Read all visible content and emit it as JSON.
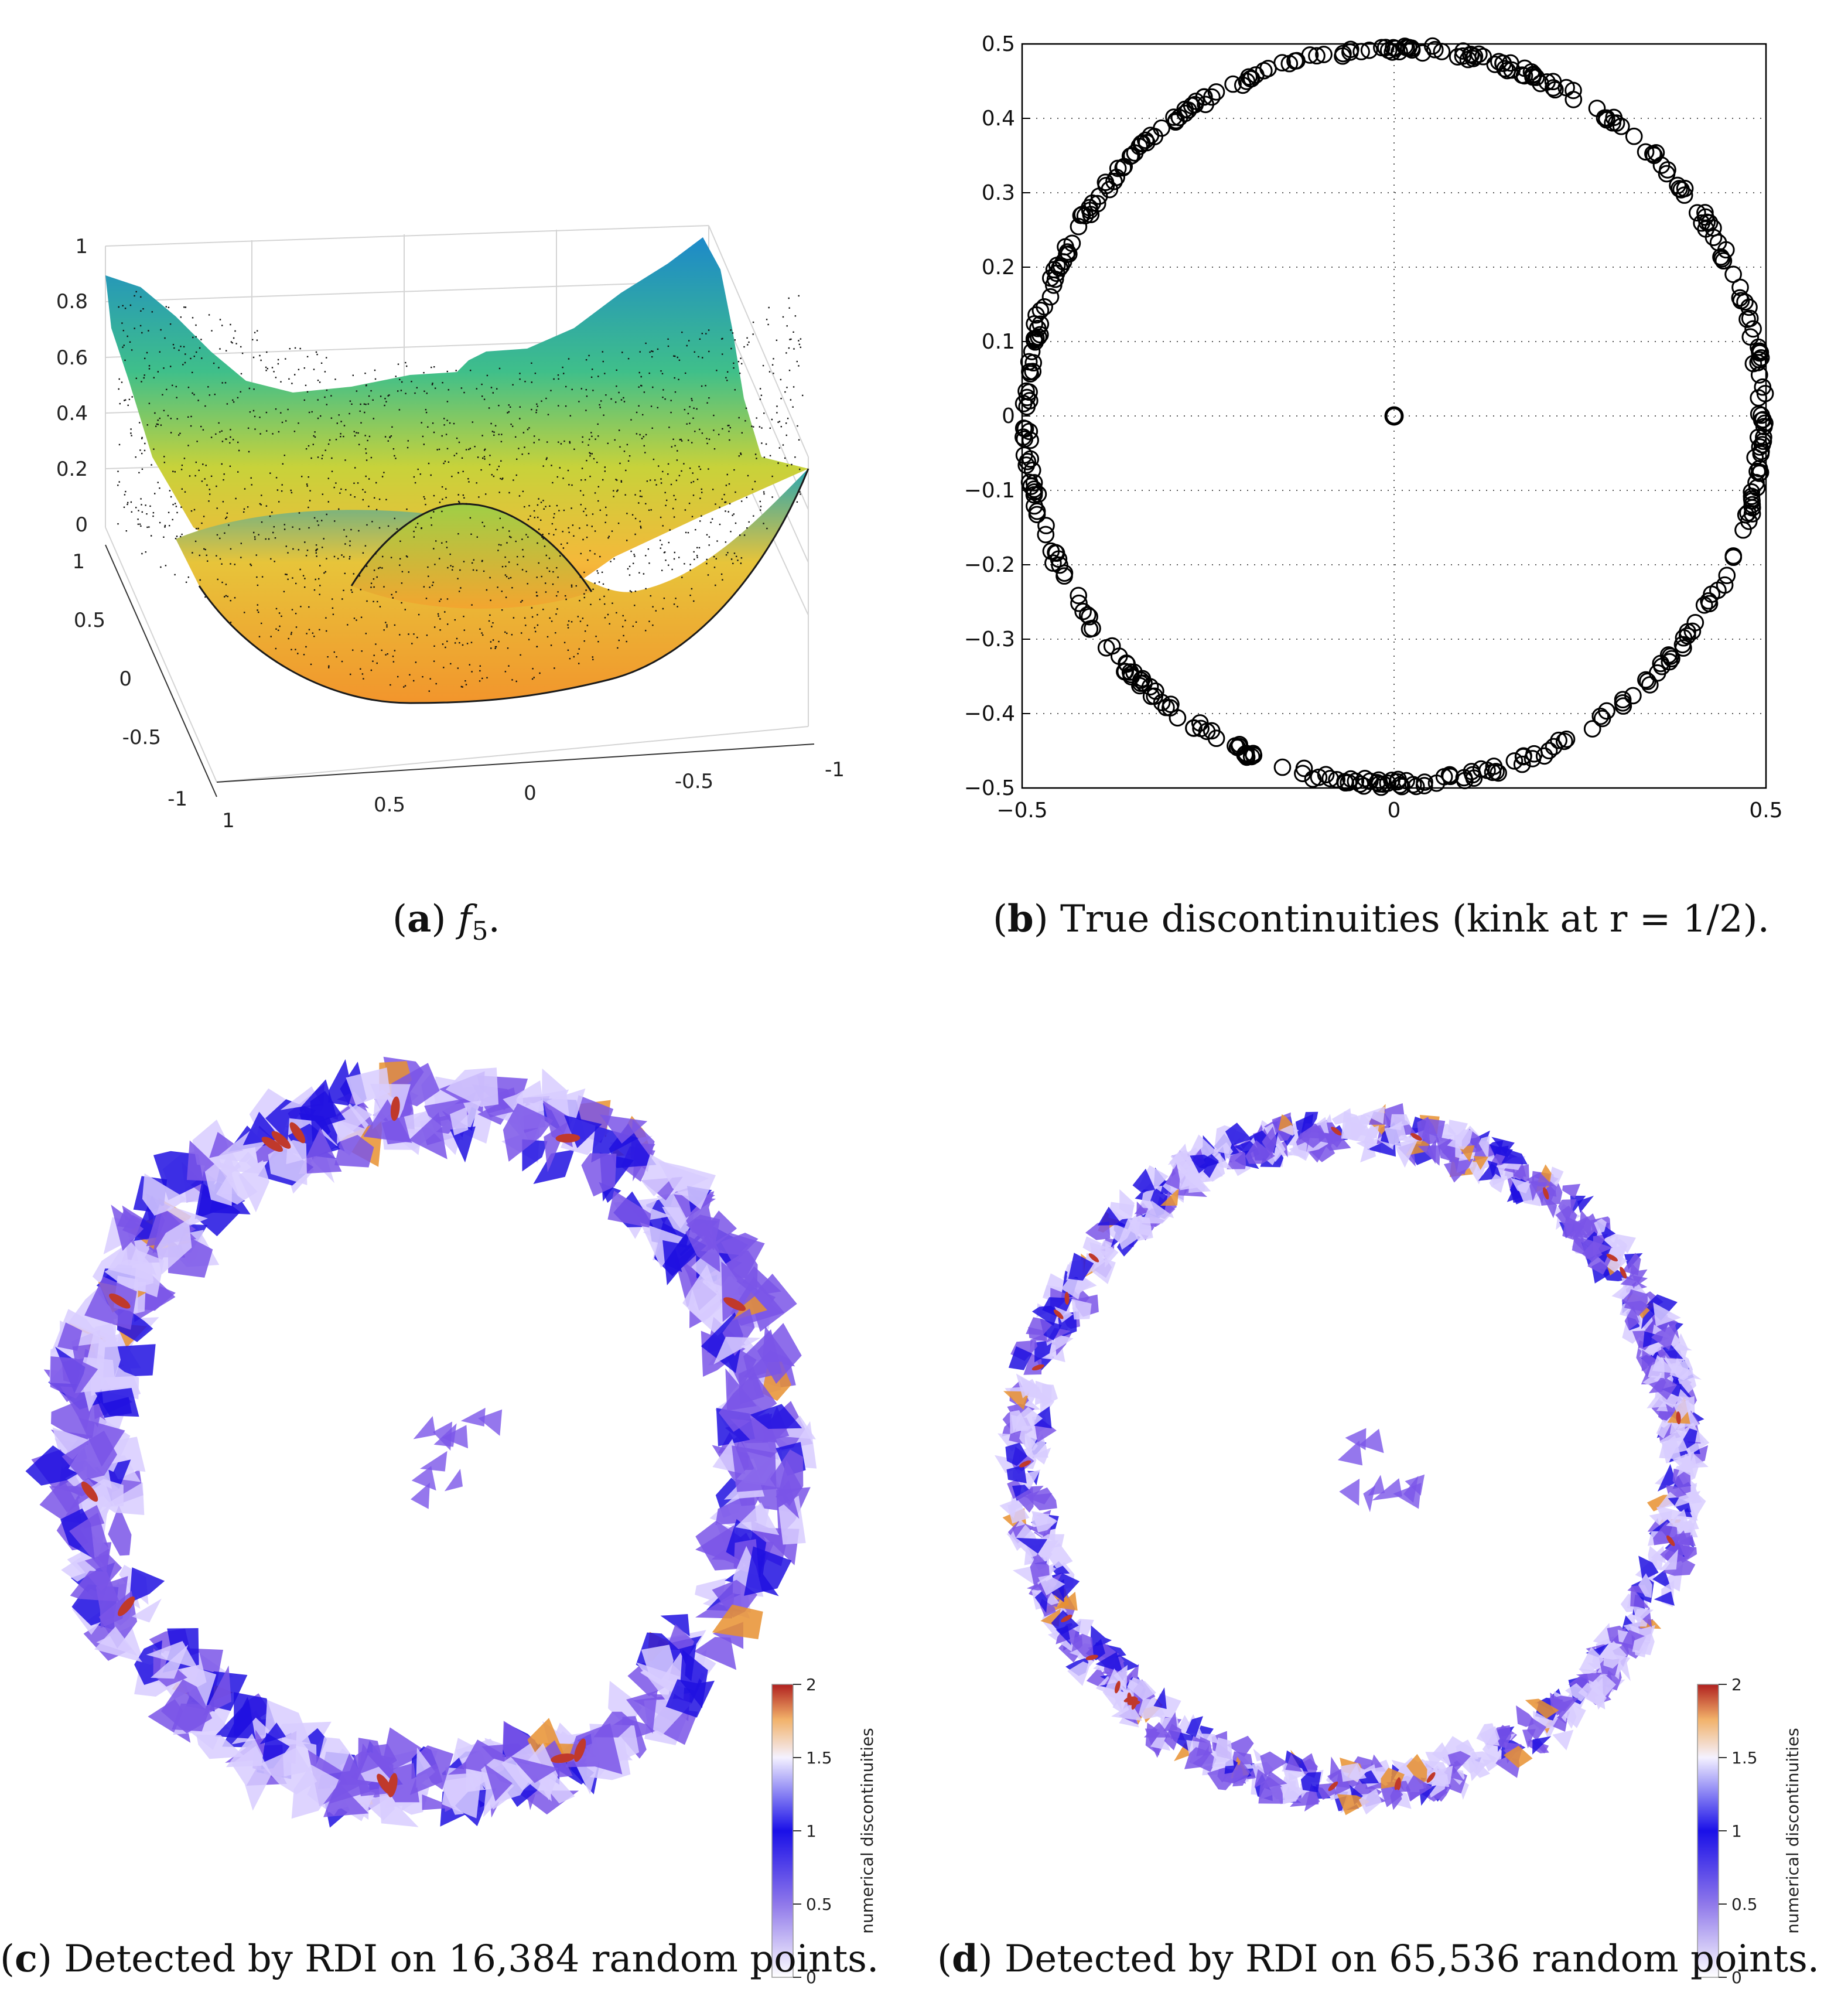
{
  "captions": {
    "a": {
      "letter": "a",
      "text": "f",
      "sub": "5",
      "tail": "."
    },
    "b": {
      "letter": "b",
      "text": "True discontinuities (kink at r = 1/2)."
    },
    "c": {
      "letter": "c",
      "text": "Detected by RDI on 16,384 random points."
    },
    "d": {
      "letter": "d",
      "text": "Detected by RDI on 65,536 random points."
    }
  },
  "chart_data": [
    {
      "id": "a",
      "type": "scatter",
      "title": "",
      "description_of_data": "surface f5 sampled at random points on [-1,1]x[-1,1], colored by value",
      "zlim": [
        0,
        1
      ],
      "zticks": [
        "0",
        "0.2",
        "0.4",
        "0.6",
        "0.8",
        "1"
      ],
      "yticks": [
        "-1",
        "-0.5",
        "0",
        "0.5",
        "1"
      ],
      "xticks": [
        "1",
        "0.5",
        "0",
        "-0.5",
        "-1"
      ],
      "colormap": [
        "#2b7bba",
        "#21a8b5",
        "#4cc26c",
        "#b7d33a",
        "#f5c242",
        "#f08a2c"
      ]
    },
    {
      "id": "b",
      "type": "scatter",
      "series": [
        {
          "name": "discontinuity points",
          "shape": "circle",
          "radius": 0.5,
          "count": 420
        },
        {
          "name": "center point",
          "x": [
            0
          ],
          "y": [
            0
          ]
        }
      ],
      "xlim": [
        -0.5,
        0.5
      ],
      "ylim": [
        -0.5,
        0.5
      ],
      "xticks": [
        "−0.5",
        "0",
        "0.5"
      ],
      "yticks": [
        "0.5",
        "0.4",
        "0.3",
        "0.2",
        "0.1",
        "0",
        "−0.1",
        "−0.2",
        "−0.3",
        "−0.4",
        "−0.5"
      ],
      "grid": true,
      "marker_color": "#000000"
    },
    {
      "id": "c",
      "type": "heatmap",
      "shape": "ring",
      "radius": 0.5,
      "points": 16384,
      "colorbar": {
        "label": "numerical discontinuities",
        "min": 0,
        "max": 2,
        "ticks": [
          "2",
          "1.5",
          "1",
          "0.5",
          "0"
        ]
      },
      "colors": {
        "low": "#d8ccff",
        "mid": "#7a55e8",
        "one": "#2010e0",
        "high": "#c0392b",
        "hot": "#e89030"
      }
    },
    {
      "id": "d",
      "type": "heatmap",
      "shape": "ring",
      "radius": 0.5,
      "points": 65536,
      "colorbar": {
        "label": "numerical discontinuities",
        "min": 0,
        "max": 2,
        "ticks": [
          "2",
          "1.5",
          "1",
          "0.5",
          "0"
        ]
      },
      "colors": {
        "low": "#d8ccff",
        "mid": "#7a55e8",
        "one": "#2010e0",
        "high": "#c0392b",
        "hot": "#e89030"
      }
    }
  ]
}
